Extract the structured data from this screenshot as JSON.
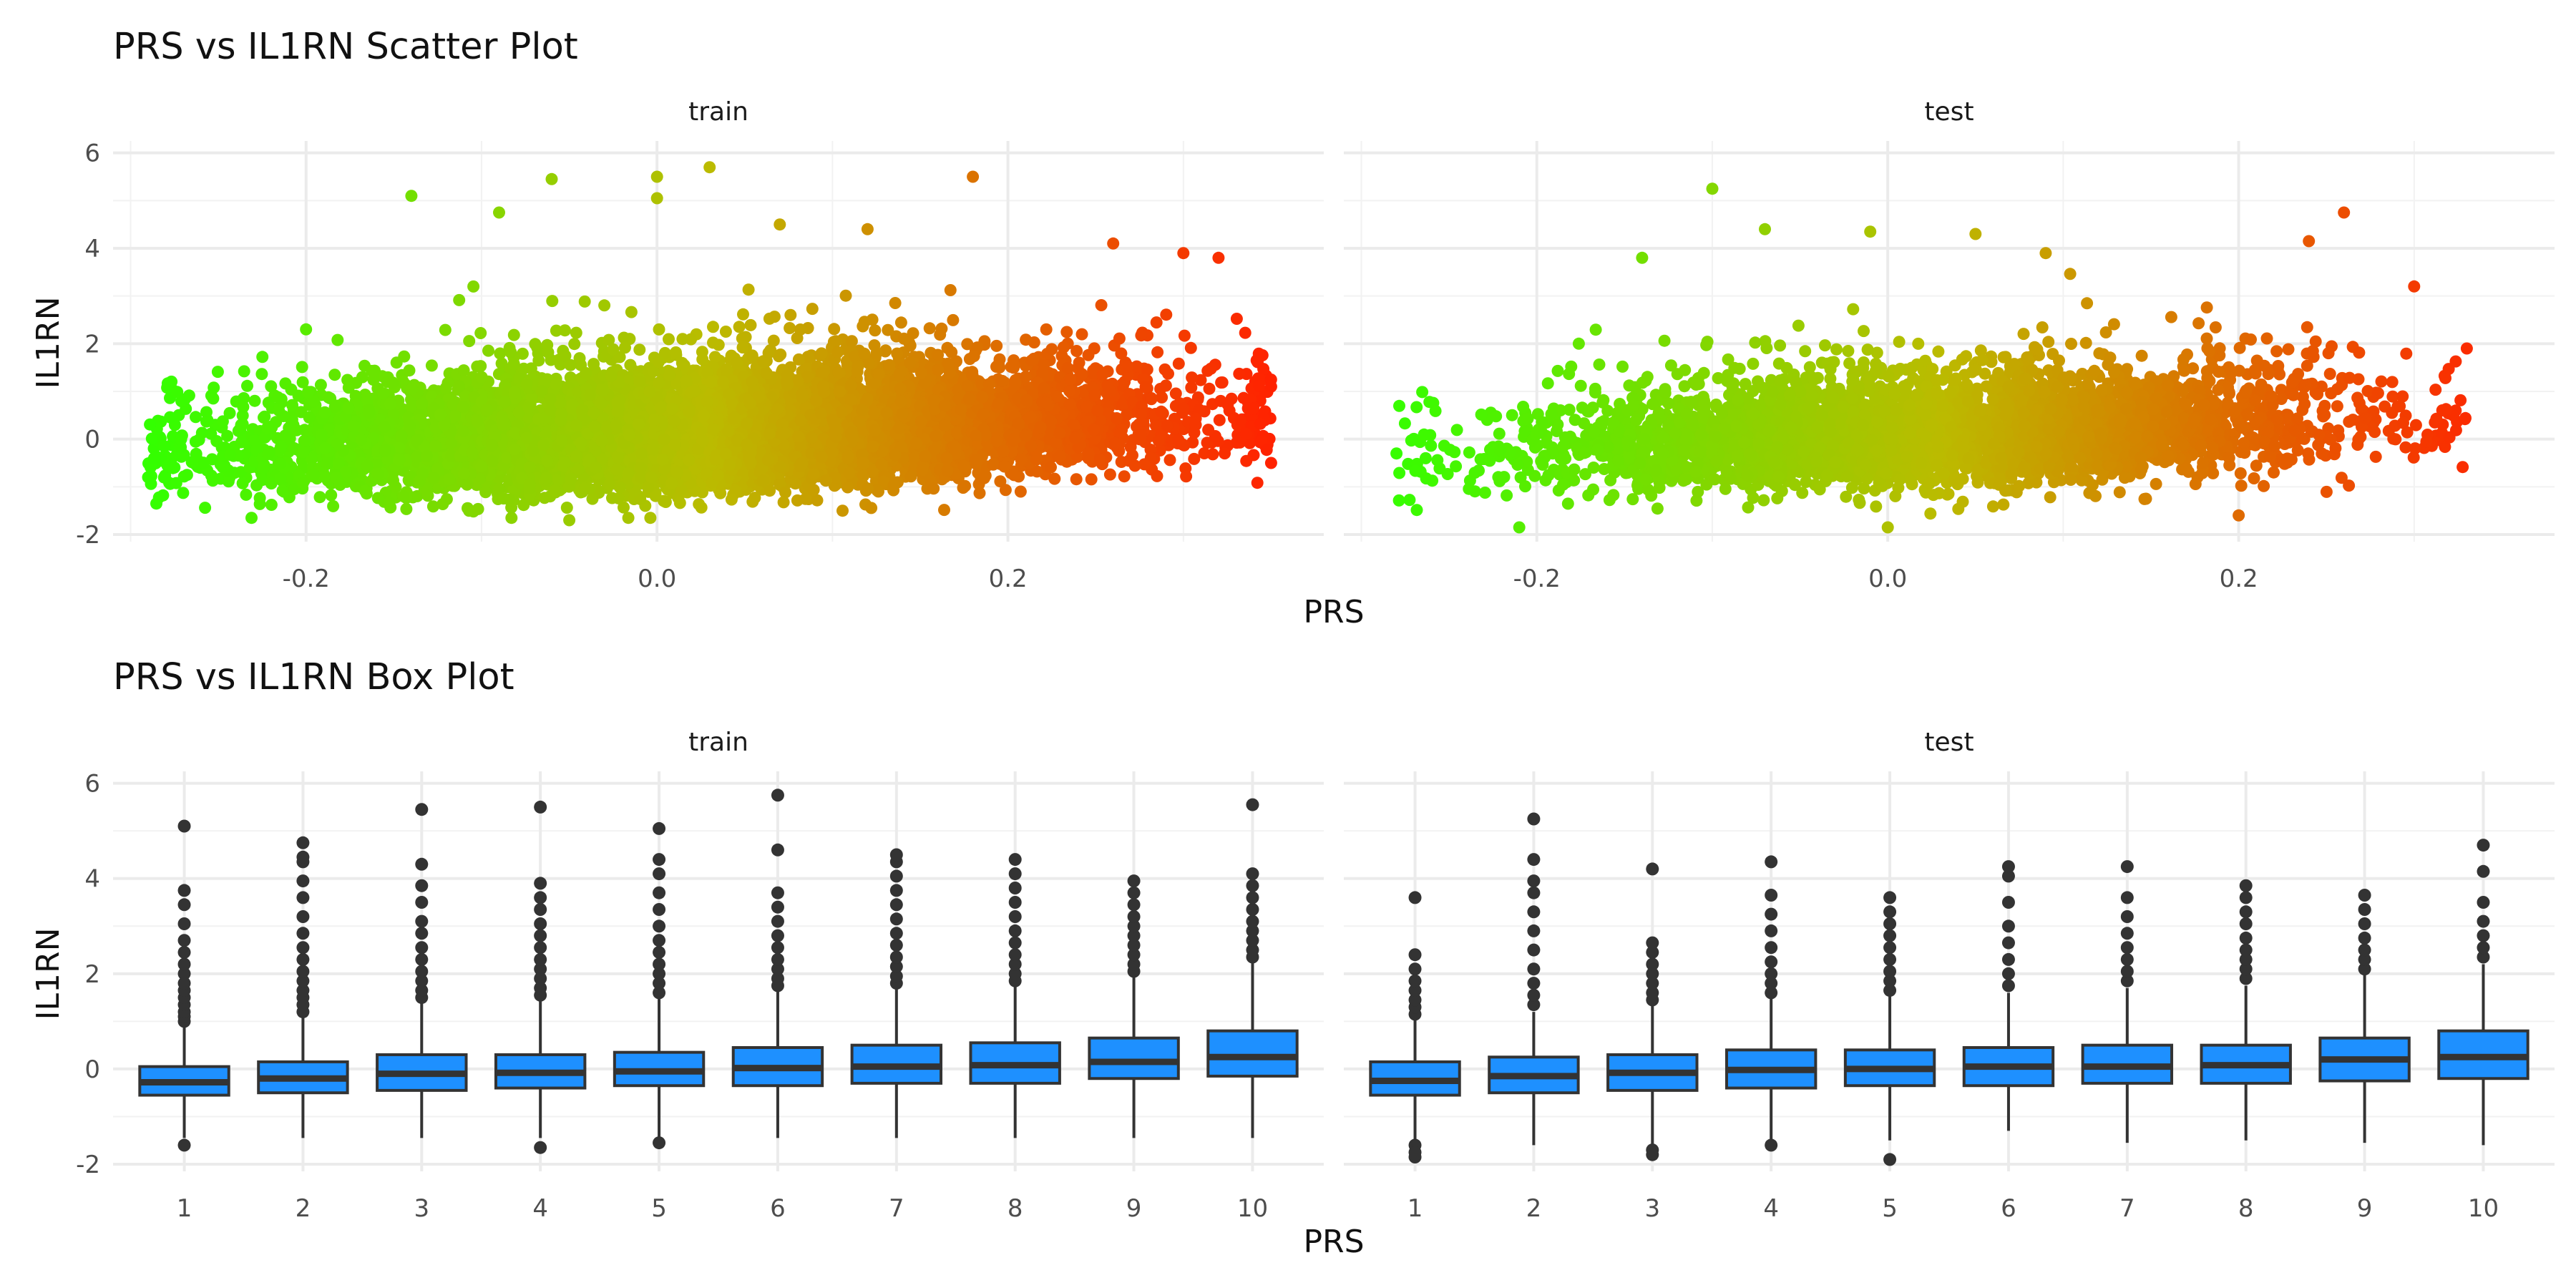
{
  "chart_data": [
    {
      "type": "scatter",
      "title": "PRS vs IL1RN Scatter Plot",
      "xlabel": "PRS",
      "ylabel": "IL1RN",
      "panels": [
        "train",
        "test"
      ],
      "xlim": [
        -0.31,
        0.38
      ],
      "ylim": [
        -2.15,
        6.25
      ],
      "x_ticks": [
        -0.2,
        0.0,
        0.2
      ],
      "x_tick_labels": [
        "-0.2",
        "0.0",
        "0.2"
      ],
      "y_ticks": [
        -2,
        0,
        2,
        4,
        6
      ],
      "y_tick_labels": [
        "-2",
        "0",
        "2",
        "4",
        "6"
      ],
      "color_gradient": {
        "low": "#33ff00",
        "mid": "#bbbb00",
        "high": "#ff2200"
      },
      "grid": true,
      "trend": {
        "intercept": 0.05,
        "slope": 1.2
      },
      "series": [
        {
          "panel": "train",
          "n_points_approx": 8500,
          "x_range": [
            -0.29,
            0.35
          ],
          "y_core_range": [
            -1.5,
            2.5
          ],
          "notable_points": [
            {
              "x": 0.03,
              "y": 5.7
            },
            {
              "x": 0.18,
              "y": 5.5
            },
            {
              "x": -0.0,
              "y": 5.5
            },
            {
              "x": -0.06,
              "y": 5.45
            },
            {
              "x": -0.14,
              "y": 5.1
            },
            {
              "x": 0.0,
              "y": 5.05
            },
            {
              "x": -0.09,
              "y": 4.75
            },
            {
              "x": 0.07,
              "y": 4.5
            },
            {
              "x": 0.12,
              "y": 4.4
            },
            {
              "x": 0.26,
              "y": 4.1
            },
            {
              "x": 0.3,
              "y": 3.9
            },
            {
              "x": 0.32,
              "y": 3.8
            },
            {
              "x": -0.2,
              "y": 2.3
            },
            {
              "x": 0.35,
              "y": 1.1
            },
            {
              "x": 0.35,
              "y": -0.5
            },
            {
              "x": -0.29,
              "y": -0.8
            },
            {
              "x": -0.05,
              "y": -1.7
            }
          ]
        },
        {
          "panel": "test",
          "n_points_approx": 3700,
          "x_range": [
            -0.28,
            0.33
          ],
          "y_core_range": [
            -1.5,
            2.3
          ],
          "notable_points": [
            {
              "x": -0.1,
              "y": 5.25
            },
            {
              "x": 0.26,
              "y": 4.75
            },
            {
              "x": -0.07,
              "y": 4.4
            },
            {
              "x": -0.01,
              "y": 4.35
            },
            {
              "x": 0.24,
              "y": 4.15
            },
            {
              "x": 0.05,
              "y": 4.3
            },
            {
              "x": 0.09,
              "y": 3.9
            },
            {
              "x": -0.14,
              "y": 3.8
            },
            {
              "x": 0.3,
              "y": 3.2
            },
            {
              "x": 0.33,
              "y": 1.9
            },
            {
              "x": -0.28,
              "y": -0.3
            },
            {
              "x": -0.21,
              "y": -1.85
            },
            {
              "x": 0.0,
              "y": -1.85
            },
            {
              "x": 0.2,
              "y": -1.6
            }
          ]
        }
      ]
    },
    {
      "type": "box",
      "title": "PRS vs IL1RN Box Plot",
      "xlabel": "PRS",
      "ylabel": "IL1RN",
      "panels": [
        "train",
        "test"
      ],
      "categories": [
        "1",
        "2",
        "3",
        "4",
        "5",
        "6",
        "7",
        "8",
        "9",
        "10"
      ],
      "ylim": [
        -2.15,
        6.25
      ],
      "y_ticks": [
        -2,
        0,
        2,
        4,
        6
      ],
      "y_tick_labels": [
        "-2",
        "0",
        "2",
        "4",
        "6"
      ],
      "box_fill": "#1e90ff",
      "box_line": "#333333",
      "grid": true,
      "series": [
        {
          "panel": "train",
          "boxes": [
            {
              "q1": -0.55,
              "median": -0.28,
              "q3": 0.05,
              "whisker_low": -1.45,
              "whisker_high": 0.95,
              "outliers": [
                1.0,
                1.1,
                1.2,
                1.35,
                1.5,
                1.65,
                1.8,
                2.0,
                2.2,
                2.45,
                2.7,
                3.05,
                3.45,
                3.75,
                5.1,
                -1.6
              ]
            },
            {
              "q1": -0.5,
              "median": -0.2,
              "q3": 0.15,
              "whisker_low": -1.45,
              "whisker_high": 1.1,
              "outliers": [
                1.2,
                1.35,
                1.5,
                1.65,
                1.85,
                2.05,
                2.3,
                2.55,
                2.85,
                3.2,
                3.6,
                3.95,
                4.35,
                4.45,
                4.75
              ]
            },
            {
              "q1": -0.45,
              "median": -0.1,
              "q3": 0.3,
              "whisker_low": -1.45,
              "whisker_high": 1.4,
              "outliers": [
                1.5,
                1.65,
                1.85,
                2.05,
                2.3,
                2.55,
                2.85,
                3.1,
                3.5,
                3.85,
                4.3,
                5.45
              ]
            },
            {
              "q1": -0.4,
              "median": -0.08,
              "q3": 0.3,
              "whisker_low": -1.45,
              "whisker_high": 1.45,
              "outliers": [
                1.55,
                1.7,
                1.9,
                2.1,
                2.3,
                2.55,
                2.8,
                3.05,
                3.35,
                3.6,
                3.9,
                5.5,
                -1.65
              ]
            },
            {
              "q1": -0.35,
              "median": -0.05,
              "q3": 0.35,
              "whisker_low": -1.45,
              "whisker_high": 1.5,
              "outliers": [
                1.6,
                1.8,
                2.0,
                2.2,
                2.45,
                2.7,
                3.0,
                3.35,
                3.7,
                4.1,
                4.4,
                5.05,
                -1.55
              ]
            },
            {
              "q1": -0.35,
              "median": 0.02,
              "q3": 0.45,
              "whisker_low": -1.45,
              "whisker_high": 1.65,
              "outliers": [
                1.75,
                1.9,
                2.1,
                2.3,
                2.55,
                2.8,
                3.1,
                3.4,
                3.7,
                4.6,
                5.75
              ]
            },
            {
              "q1": -0.3,
              "median": 0.05,
              "q3": 0.5,
              "whisker_low": -1.45,
              "whisker_high": 1.7,
              "outliers": [
                1.8,
                1.95,
                2.15,
                2.35,
                2.6,
                2.85,
                3.15,
                3.45,
                3.75,
                4.05,
                4.35,
                4.5
              ]
            },
            {
              "q1": -0.3,
              "median": 0.08,
              "q3": 0.55,
              "whisker_low": -1.45,
              "whisker_high": 1.75,
              "outliers": [
                1.85,
                2.0,
                2.2,
                2.4,
                2.65,
                2.9,
                3.2,
                3.5,
                3.8,
                4.1,
                4.4
              ]
            },
            {
              "q1": -0.2,
              "median": 0.15,
              "q3": 0.65,
              "whisker_low": -1.45,
              "whisker_high": 1.95,
              "outliers": [
                2.05,
                2.2,
                2.4,
                2.6,
                2.8,
                3.0,
                3.2,
                3.45,
                3.7,
                3.95
              ]
            },
            {
              "q1": -0.15,
              "median": 0.25,
              "q3": 0.8,
              "whisker_low": -1.45,
              "whisker_high": 2.25,
              "outliers": [
                2.35,
                2.5,
                2.7,
                2.9,
                3.1,
                3.35,
                3.6,
                3.85,
                4.1,
                5.55
              ]
            }
          ]
        },
        {
          "panel": "test",
          "boxes": [
            {
              "q1": -0.55,
              "median": -0.25,
              "q3": 0.15,
              "whisker_low": -1.5,
              "whisker_high": 1.05,
              "outliers": [
                1.15,
                1.3,
                1.45,
                1.65,
                1.85,
                2.1,
                2.4,
                3.6,
                -1.6,
                -1.75,
                -1.85
              ]
            },
            {
              "q1": -0.5,
              "median": -0.15,
              "q3": 0.25,
              "whisker_low": -1.6,
              "whisker_high": 1.2,
              "outliers": [
                1.35,
                1.55,
                1.8,
                2.1,
                2.5,
                2.9,
                3.3,
                3.7,
                3.95,
                4.4,
                5.25
              ]
            },
            {
              "q1": -0.45,
              "median": -0.08,
              "q3": 0.3,
              "whisker_low": -1.6,
              "whisker_high": 1.35,
              "outliers": [
                1.45,
                1.6,
                1.8,
                2.0,
                2.2,
                2.45,
                2.65,
                4.2,
                -1.7,
                -1.8
              ]
            },
            {
              "q1": -0.4,
              "median": -0.02,
              "q3": 0.4,
              "whisker_low": -1.5,
              "whisker_high": 1.5,
              "outliers": [
                1.6,
                1.8,
                2.0,
                2.25,
                2.55,
                2.9,
                3.25,
                3.65,
                4.35,
                -1.6
              ]
            },
            {
              "q1": -0.35,
              "median": 0.0,
              "q3": 0.4,
              "whisker_low": -1.5,
              "whisker_high": 1.55,
              "outliers": [
                1.65,
                1.85,
                2.05,
                2.3,
                2.55,
                2.8,
                3.05,
                3.3,
                3.6,
                -1.9
              ]
            },
            {
              "q1": -0.35,
              "median": 0.05,
              "q3": 0.45,
              "whisker_low": -1.3,
              "whisker_high": 1.6,
              "outliers": [
                1.75,
                2.0,
                2.3,
                2.65,
                3.0,
                3.5,
                4.05,
                4.25
              ]
            },
            {
              "q1": -0.3,
              "median": 0.05,
              "q3": 0.5,
              "whisker_low": -1.55,
              "whisker_high": 1.7,
              "outliers": [
                1.85,
                2.05,
                2.3,
                2.55,
                2.85,
                3.2,
                3.6,
                4.25
              ]
            },
            {
              "q1": -0.3,
              "median": 0.08,
              "q3": 0.5,
              "whisker_low": -1.5,
              "whisker_high": 1.75,
              "outliers": [
                1.9,
                2.1,
                2.3,
                2.5,
                2.75,
                3.05,
                3.3,
                3.6,
                3.85
              ]
            },
            {
              "q1": -0.25,
              "median": 0.2,
              "q3": 0.65,
              "whisker_low": -1.55,
              "whisker_high": 2.0,
              "outliers": [
                2.1,
                2.3,
                2.5,
                2.75,
                3.05,
                3.35,
                3.65
              ]
            },
            {
              "q1": -0.2,
              "median": 0.25,
              "q3": 0.8,
              "whisker_low": -1.6,
              "whisker_high": 2.2,
              "outliers": [
                2.35,
                2.55,
                2.8,
                3.1,
                3.5,
                4.15,
                4.7
              ]
            }
          ]
        }
      ]
    }
  ]
}
